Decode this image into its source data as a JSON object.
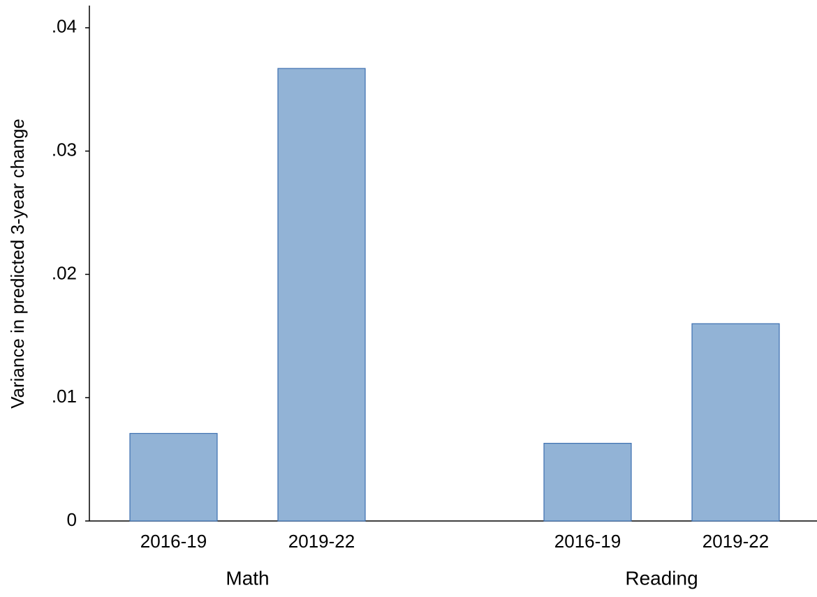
{
  "chart_data": {
    "type": "bar",
    "y_label": "Variance in predicted 3-year change",
    "groups": [
      {
        "name": "Math",
        "categories": [
          "2016-19",
          "2019-22"
        ],
        "values": [
          0.0071,
          0.0367
        ]
      },
      {
        "name": "Reading",
        "categories": [
          "2016-19",
          "2019-22"
        ],
        "values": [
          0.0063,
          0.016
        ]
      }
    ],
    "color": "#92b3d6",
    "edge_color": "#3d6fb0",
    "ylim": [
      0,
      0.0418
    ],
    "yticks": [
      0,
      {
        "value": 0.01,
        "label": ".01"
      },
      {
        "value": 0.02,
        "label": ".02"
      },
      {
        "value": 0.03,
        "label": ".03"
      },
      {
        "value": 0.04,
        "label": ".04"
      }
    ],
    "grid": false
  }
}
